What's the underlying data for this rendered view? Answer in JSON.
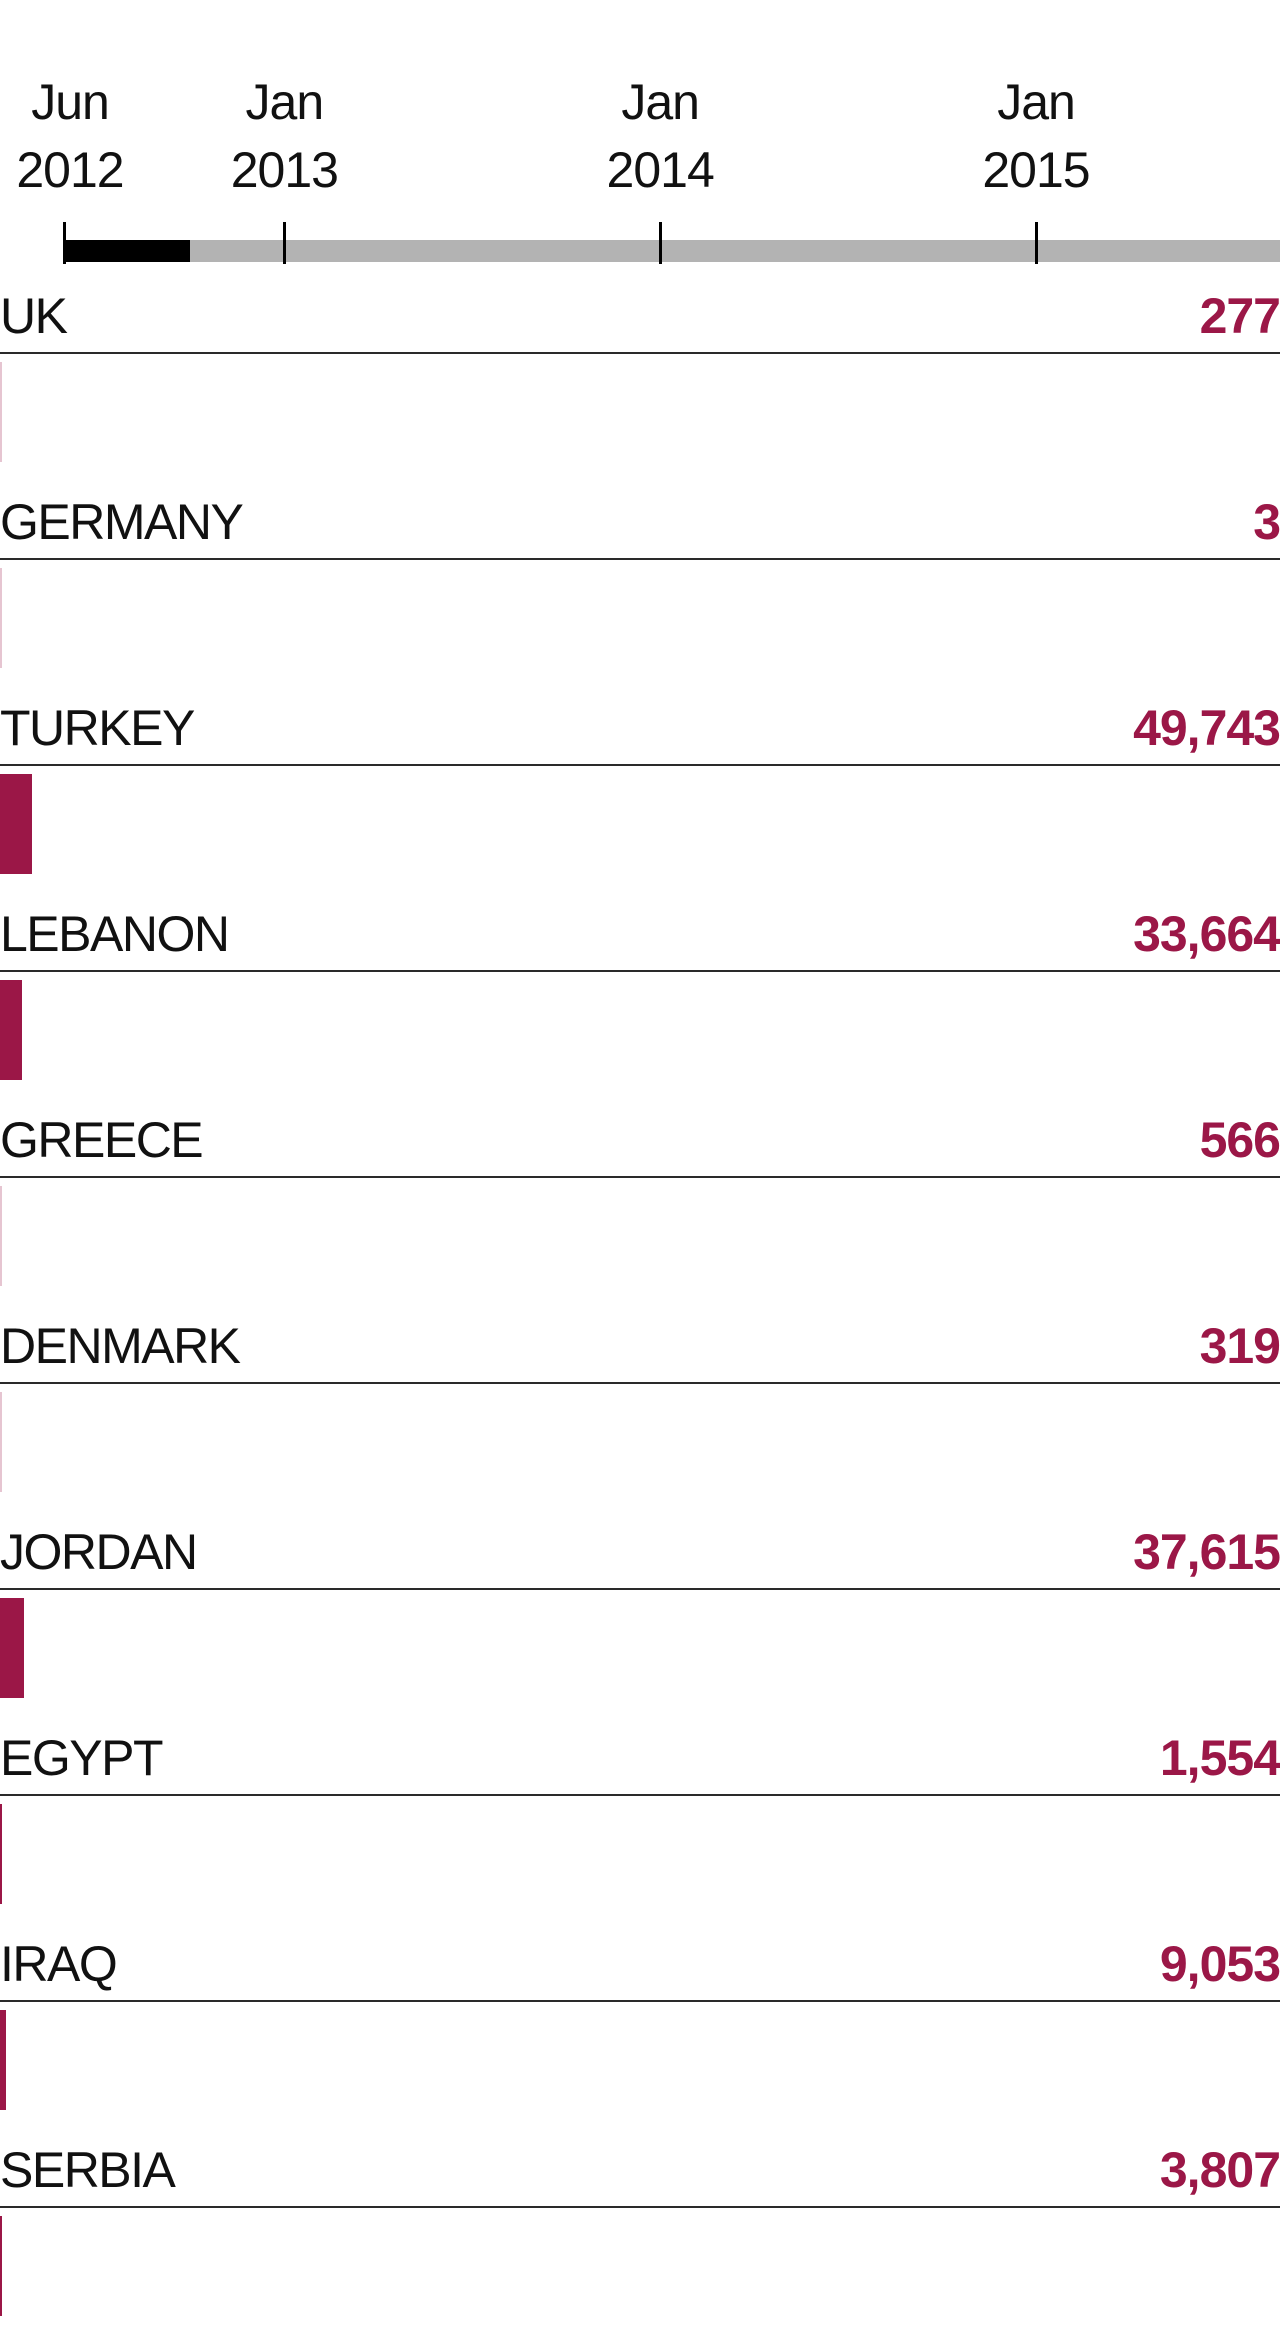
{
  "chart_data": {
    "type": "bar",
    "timeline": {
      "ticks": [
        {
          "month": "Jun",
          "year": "2012",
          "date": "2012-06"
        },
        {
          "month": "Jan",
          "year": "2013",
          "date": "2013-01"
        },
        {
          "month": "Jan",
          "year": "2014",
          "date": "2014-01"
        },
        {
          "month": "Jan",
          "year": "2015",
          "date": "2015-01"
        }
      ],
      "progress_start": "2012-06",
      "progress_end": "2012-10"
    },
    "categories": [
      "UK",
      "GERMANY",
      "TURKEY",
      "LEBANON",
      "GREECE",
      "DENMARK",
      "JORDAN",
      "EGYPT",
      "IRAQ",
      "SERBIA"
    ],
    "labels": [
      "277",
      "3",
      "49,743",
      "33,664",
      "566",
      "319",
      "37,615",
      "1,554",
      "9,053",
      "3,807"
    ],
    "values": [
      277,
      3,
      49743,
      33664,
      566,
      319,
      37615,
      1554,
      9053,
      3807
    ],
    "colors": {
      "bar": "#9b1747",
      "value_text": "#9b1747",
      "track": "#b3b3b3",
      "progress": "#000000"
    }
  }
}
